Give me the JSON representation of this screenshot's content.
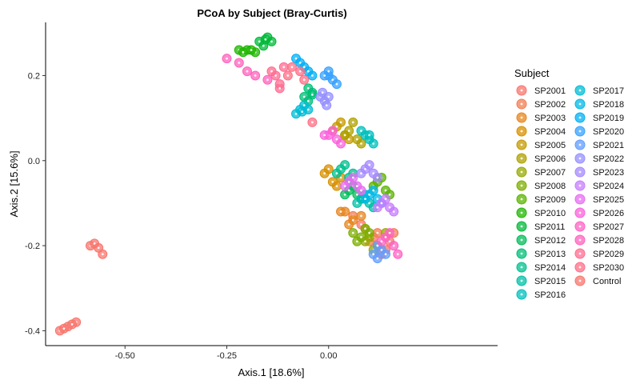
{
  "chart_data": {
    "type": "scatter",
    "title": "PCoA by Subject (Bray-Curtis)",
    "xlabel": "Axis.1   [18.6%]",
    "ylabel": "Axis.2   [15.6%]",
    "xlim": [
      -0.695,
      0.415
    ],
    "ylim": [
      -0.435,
      0.325
    ],
    "x_ticks": [
      -0.5,
      -0.25,
      0.0
    ],
    "x_tick_labels": [
      "-0.50",
      "-0.25",
      "0.00"
    ],
    "y_ticks": [
      0.2,
      0.0,
      -0.2,
      -0.4
    ],
    "y_tick_labels": [
      "0.2",
      "0.0",
      "-0.2",
      "-0.4"
    ],
    "grid": false,
    "legend": {
      "title": "Subject",
      "position": "right",
      "columns": 2
    },
    "series": [
      {
        "name": "SP2001",
        "color": "#F8766D",
        "points": [
          [
            0.13,
            -0.22
          ],
          [
            0.15,
            -0.19
          ],
          [
            0.08,
            -0.15
          ],
          [
            0.11,
            -0.18
          ],
          [
            0.14,
            -0.21
          ]
        ]
      },
      {
        "name": "SP2002",
        "color": "#F27D52",
        "points": [
          [
            0.09,
            -0.16
          ],
          [
            0.12,
            -0.17
          ],
          [
            0.06,
            -0.13
          ],
          [
            0.1,
            -0.19
          ],
          [
            0.16,
            -0.17
          ]
        ]
      },
      {
        "name": "SP2003",
        "color": "#E7851E",
        "points": [
          [
            0.04,
            -0.12
          ],
          [
            0.06,
            -0.14
          ],
          [
            0.08,
            -0.13
          ],
          [
            0.03,
            -0.12
          ],
          [
            0.05,
            -0.15
          ]
        ]
      },
      {
        "name": "SP2004",
        "color": "#D89000",
        "points": [
          [
            -0.01,
            -0.03
          ],
          [
            0.01,
            -0.05
          ],
          [
            0.03,
            -0.04
          ],
          [
            0.0,
            -0.02
          ],
          [
            0.02,
            -0.06
          ]
        ]
      },
      {
        "name": "SP2005",
        "color": "#C59900",
        "points": [
          [
            0.02,
            0.08
          ],
          [
            0.04,
            0.06
          ],
          [
            0.03,
            0.09
          ],
          [
            0.05,
            0.05
          ],
          [
            0.01,
            0.07
          ]
        ]
      },
      {
        "name": "SP2006",
        "color": "#AFA100",
        "points": [
          [
            0.05,
            0.07
          ],
          [
            0.07,
            0.05
          ],
          [
            0.06,
            0.09
          ],
          [
            0.08,
            0.04
          ],
          [
            0.04,
            0.06
          ]
        ]
      },
      {
        "name": "SP2007",
        "color": "#97A900",
        "points": [
          [
            0.1,
            -0.18
          ],
          [
            0.12,
            -0.2
          ],
          [
            0.14,
            -0.17
          ],
          [
            0.09,
            -0.19
          ],
          [
            0.11,
            -0.21
          ]
        ]
      },
      {
        "name": "SP2008",
        "color": "#7CAE00",
        "points": [
          [
            0.07,
            -0.19
          ],
          [
            0.09,
            -0.16
          ],
          [
            0.08,
            -0.18
          ],
          [
            0.06,
            -0.17
          ],
          [
            0.1,
            -0.17
          ]
        ]
      },
      {
        "name": "SP2009",
        "color": "#5BB300",
        "points": [
          [
            0.12,
            -0.05
          ],
          [
            0.14,
            -0.07
          ],
          [
            0.13,
            -0.04
          ],
          [
            0.15,
            -0.08
          ],
          [
            0.11,
            -0.06
          ]
        ]
      },
      {
        "name": "SP2010",
        "color": "#1FB700",
        "points": [
          [
            -0.22,
            0.26
          ],
          [
            -0.2,
            0.26
          ],
          [
            -0.18,
            0.255
          ],
          [
            -0.21,
            0.255
          ],
          [
            -0.19,
            0.26
          ]
        ]
      },
      {
        "name": "SP2011",
        "color": "#00BA38",
        "points": [
          [
            -0.17,
            0.28
          ],
          [
            -0.15,
            0.29
          ],
          [
            -0.16,
            0.27
          ],
          [
            -0.14,
            0.28
          ],
          [
            -0.155,
            0.285
          ]
        ]
      },
      {
        "name": "SP2012",
        "color": "#00BC59",
        "points": [
          [
            0.05,
            -0.07
          ],
          [
            0.07,
            -0.08
          ],
          [
            0.06,
            -0.06
          ],
          [
            0.08,
            -0.09
          ],
          [
            0.04,
            -0.08
          ]
        ]
      },
      {
        "name": "SP2013",
        "color": "#00BE76",
        "points": [
          [
            -0.05,
            0.17
          ],
          [
            -0.04,
            0.16
          ],
          [
            -0.06,
            0.15
          ],
          [
            -0.05,
            0.14
          ],
          [
            -0.04,
            0.155
          ]
        ]
      },
      {
        "name": "SP2014",
        "color": "#00C08F",
        "points": [
          [
            0.03,
            -0.02
          ],
          [
            0.05,
            -0.04
          ],
          [
            0.04,
            -0.01
          ],
          [
            0.06,
            -0.03
          ],
          [
            0.02,
            -0.03
          ]
        ]
      },
      {
        "name": "SP2015",
        "color": "#00C0A7",
        "points": [
          [
            0.08,
            -0.09
          ],
          [
            0.1,
            -0.1
          ],
          [
            0.09,
            -0.08
          ],
          [
            0.11,
            -0.11
          ],
          [
            0.07,
            -0.1
          ]
        ]
      },
      {
        "name": "SP2016",
        "color": "#00C0BE",
        "points": [
          [
            0.09,
            0.06
          ],
          [
            0.1,
            0.05
          ],
          [
            0.08,
            0.07
          ],
          [
            0.11,
            0.04
          ],
          [
            0.1,
            0.06
          ]
        ]
      },
      {
        "name": "SP2017",
        "color": "#00BCD6",
        "points": [
          [
            -0.07,
            0.12
          ],
          [
            -0.06,
            0.13
          ],
          [
            -0.08,
            0.11
          ],
          [
            -0.05,
            0.12
          ],
          [
            -0.065,
            0.115
          ]
        ]
      },
      {
        "name": "SP2018",
        "color": "#00B8E7",
        "points": [
          [
            0.1,
            -0.08
          ],
          [
            0.12,
            -0.09
          ],
          [
            0.11,
            -0.07
          ],
          [
            0.13,
            -0.1
          ],
          [
            0.09,
            -0.09
          ]
        ]
      },
      {
        "name": "SP2019",
        "color": "#00B0F6",
        "points": [
          [
            -0.08,
            0.24
          ],
          [
            -0.07,
            0.23
          ],
          [
            -0.06,
            0.22
          ],
          [
            -0.05,
            0.21
          ],
          [
            -0.04,
            0.2
          ]
        ]
      },
      {
        "name": "SP2020",
        "color": "#35A2FF",
        "points": [
          [
            0.0,
            0.2
          ],
          [
            0.01,
            0.19
          ],
          [
            0.02,
            0.18
          ],
          [
            0.0,
            0.21
          ],
          [
            -0.01,
            0.2
          ]
        ]
      },
      {
        "name": "SP2021",
        "color": "#619CFF",
        "points": [
          [
            0.12,
            -0.23
          ],
          [
            0.14,
            -0.22
          ],
          [
            0.13,
            -0.21
          ],
          [
            0.11,
            -0.22
          ],
          [
            0.12,
            -0.2
          ]
        ]
      },
      {
        "name": "SP2022",
        "color": "#9590FF",
        "points": [
          [
            -0.02,
            0.15
          ],
          [
            -0.01,
            0.14
          ],
          [
            0.0,
            0.15
          ],
          [
            -0.015,
            0.16
          ],
          [
            -0.005,
            0.13
          ]
        ]
      },
      {
        "name": "SP2023",
        "color": "#A58AFF",
        "points": [
          [
            0.09,
            -0.02
          ],
          [
            0.11,
            -0.03
          ],
          [
            0.1,
            -0.01
          ],
          [
            0.12,
            -0.04
          ],
          [
            0.08,
            -0.03
          ]
        ]
      },
      {
        "name": "SP2024",
        "color": "#C77CFF",
        "points": [
          [
            0.13,
            -0.1
          ],
          [
            0.15,
            -0.11
          ],
          [
            0.14,
            -0.09
          ],
          [
            0.16,
            -0.12
          ],
          [
            0.12,
            -0.11
          ]
        ]
      },
      {
        "name": "SP2025",
        "color": "#E76BF3",
        "points": [
          [
            0.05,
            -0.05
          ],
          [
            0.07,
            -0.06
          ],
          [
            0.06,
            -0.04
          ],
          [
            0.08,
            -0.07
          ],
          [
            0.04,
            -0.06
          ]
        ]
      },
      {
        "name": "SP2026",
        "color": "#FA62DB",
        "points": [
          [
            0.0,
            0.06
          ],
          [
            0.02,
            0.05
          ],
          [
            0.01,
            0.07
          ],
          [
            0.03,
            0.04
          ],
          [
            -0.01,
            0.06
          ]
        ]
      },
      {
        "name": "SP2027",
        "color": "#FF61C3",
        "points": [
          [
            0.14,
            -0.18
          ],
          [
            0.16,
            -0.2
          ],
          [
            0.15,
            -0.17
          ],
          [
            0.13,
            -0.19
          ],
          [
            0.17,
            -0.22
          ]
        ]
      },
      {
        "name": "SP2028",
        "color": "#FF62BC",
        "points": [
          [
            -0.25,
            0.24
          ],
          [
            -0.22,
            0.23
          ],
          [
            -0.2,
            0.21
          ],
          [
            -0.18,
            0.2
          ],
          [
            -0.15,
            0.19
          ]
        ]
      },
      {
        "name": "SP2029",
        "color": "#FF6C91",
        "points": [
          [
            -0.13,
            0.2
          ],
          [
            -0.12,
            0.18
          ],
          [
            -0.11,
            0.22
          ],
          [
            -0.12,
            0.17
          ],
          [
            -0.14,
            0.21
          ]
        ]
      },
      {
        "name": "SP2030",
        "color": "#FD6F86",
        "points": [
          [
            -0.09,
            0.22
          ],
          [
            -0.1,
            0.2
          ],
          [
            -0.07,
            0.21
          ],
          [
            -0.06,
            0.19
          ],
          [
            -0.04,
            0.09
          ]
        ]
      },
      {
        "name": "Control",
        "color": "#F8766D",
        "points": [
          [
            -0.585,
            -0.2
          ],
          [
            -0.575,
            -0.195
          ],
          [
            -0.565,
            -0.205
          ],
          [
            -0.555,
            -0.22
          ],
          [
            -0.66,
            -0.4
          ],
          [
            -0.64,
            -0.39
          ],
          [
            -0.62,
            -0.38
          ],
          [
            -0.65,
            -0.395
          ],
          [
            -0.63,
            -0.385
          ]
        ]
      }
    ]
  }
}
